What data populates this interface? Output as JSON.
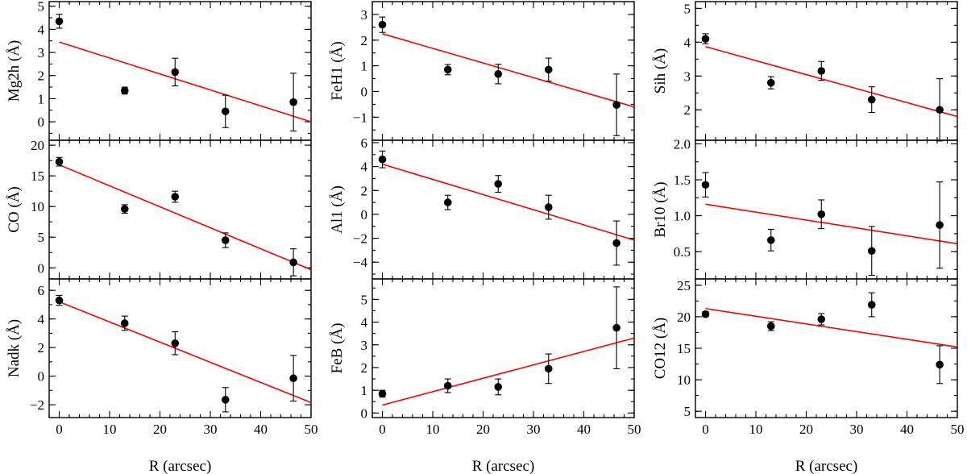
{
  "chart_data": [
    {
      "type": "scatter",
      "ylabel": "Mg2h (Å)",
      "xlabel": "",
      "xlim": [
        -2,
        50
      ],
      "ylim": [
        -0.8,
        5.2
      ],
      "yticks": [
        0,
        1,
        2,
        3,
        4,
        5
      ],
      "xticks": [
        0,
        10,
        20,
        30,
        40,
        50
      ],
      "show_x_ticklabels": false,
      "points": [
        {
          "x": 0,
          "y": 4.35,
          "err": 0.3
        },
        {
          "x": 13,
          "y": 1.35,
          "err": 0.15
        },
        {
          "x": 23,
          "y": 2.15,
          "err": 0.6
        },
        {
          "x": 33,
          "y": 0.45,
          "err": 0.7
        },
        {
          "x": 46.5,
          "y": 0.85,
          "err": 1.25
        }
      ],
      "fit": {
        "x": [
          0,
          50
        ],
        "y": [
          3.45,
          0.0
        ]
      }
    },
    {
      "type": "scatter",
      "ylabel": "FeH1 (Å)",
      "xlabel": "",
      "xlim": [
        -2,
        50
      ],
      "ylim": [
        -1.9,
        3.5
      ],
      "yticks": [
        -1,
        0,
        1,
        2,
        3
      ],
      "xticks": [
        0,
        10,
        20,
        30,
        40,
        50
      ],
      "show_x_ticklabels": false,
      "points": [
        {
          "x": 0,
          "y": 2.6,
          "err": 0.3
        },
        {
          "x": 13,
          "y": 0.85,
          "err": 0.2
        },
        {
          "x": 23,
          "y": 0.68,
          "err": 0.38
        },
        {
          "x": 33,
          "y": 0.85,
          "err": 0.45
        },
        {
          "x": 46.5,
          "y": -0.52,
          "err": 1.2
        }
      ],
      "fit": {
        "x": [
          0,
          50
        ],
        "y": [
          2.25,
          -0.6
        ]
      }
    },
    {
      "type": "scatter",
      "ylabel": "Sih (Å)",
      "xlabel": "",
      "xlim": [
        -2,
        50
      ],
      "ylim": [
        1.1,
        5.2
      ],
      "yticks": [
        2,
        3,
        4,
        5
      ],
      "xticks": [
        0,
        10,
        20,
        30,
        40,
        50
      ],
      "show_x_ticklabels": false,
      "points": [
        {
          "x": 0,
          "y": 4.1,
          "err": 0.15
        },
        {
          "x": 13,
          "y": 2.8,
          "err": 0.18
        },
        {
          "x": 23,
          "y": 3.15,
          "err": 0.28
        },
        {
          "x": 33,
          "y": 2.3,
          "err": 0.38
        },
        {
          "x": 46.5,
          "y": 2.0,
          "err": 0.92
        }
      ],
      "fit": {
        "x": [
          0,
          50
        ],
        "y": [
          3.87,
          1.8
        ]
      }
    },
    {
      "type": "scatter",
      "ylabel": "CO (Å)",
      "xlabel": "",
      "xlim": [
        -2,
        50
      ],
      "ylim": [
        -1.8,
        20.8
      ],
      "yticks": [
        0,
        5,
        10,
        15,
        20
      ],
      "xticks": [
        0,
        10,
        20,
        30,
        40,
        50
      ],
      "show_x_ticklabels": false,
      "points": [
        {
          "x": 0,
          "y": 17.3,
          "err": 0.7
        },
        {
          "x": 13,
          "y": 9.6,
          "err": 0.7
        },
        {
          "x": 23,
          "y": 11.6,
          "err": 0.9
        },
        {
          "x": 33,
          "y": 4.5,
          "err": 1.2
        },
        {
          "x": 46.5,
          "y": 0.9,
          "err": 2.2
        }
      ],
      "fit": {
        "x": [
          0,
          50
        ],
        "y": [
          16.8,
          -0.3
        ]
      }
    },
    {
      "type": "scatter",
      "ylabel": "Al1 (Å)",
      "xlabel": "",
      "xlim": [
        -2,
        50
      ],
      "ylim": [
        -5.4,
        6.2
      ],
      "yticks": [
        -4,
        -2,
        0,
        2,
        4,
        6
      ],
      "xticks": [
        0,
        10,
        20,
        30,
        40,
        50
      ],
      "show_x_ticklabels": false,
      "points": [
        {
          "x": 0,
          "y": 4.6,
          "err": 0.7
        },
        {
          "x": 13,
          "y": 1.0,
          "err": 0.6
        },
        {
          "x": 23,
          "y": 2.55,
          "err": 0.7
        },
        {
          "x": 33,
          "y": 0.6,
          "err": 1.0
        },
        {
          "x": 46.5,
          "y": -2.4,
          "err": 1.85
        }
      ],
      "fit": {
        "x": [
          0,
          50
        ],
        "y": [
          4.2,
          -2.15
        ]
      }
    },
    {
      "type": "scatter",
      "ylabel": "Br10 (Å)",
      "xlabel": "",
      "xlim": [
        -2,
        50
      ],
      "ylim": [
        0.12,
        2.05
      ],
      "yticks": [
        0.5,
        1.0,
        1.5,
        2.0
      ],
      "ytick_labels": [
        "0.5",
        "1.0",
        "1.5",
        "2.0"
      ],
      "xticks": [
        0,
        10,
        20,
        30,
        40,
        50
      ],
      "show_x_ticklabels": false,
      "points": [
        {
          "x": 0,
          "y": 1.43,
          "err": 0.17
        },
        {
          "x": 13,
          "y": 0.66,
          "err": 0.15
        },
        {
          "x": 23,
          "y": 1.02,
          "err": 0.2
        },
        {
          "x": 33,
          "y": 0.51,
          "err": 0.34
        },
        {
          "x": 46.5,
          "y": 0.87,
          "err": 0.6
        }
      ],
      "fit": {
        "x": [
          0,
          50
        ],
        "y": [
          1.16,
          0.61
        ]
      }
    },
    {
      "type": "scatter",
      "ylabel": "Nadk (Å)",
      "xlabel": "R (arcsec)",
      "xlim": [
        -2,
        50
      ],
      "ylim": [
        -2.9,
        6.8
      ],
      "yticks": [
        -2,
        0,
        2,
        4,
        6
      ],
      "xticks": [
        0,
        10,
        20,
        30,
        40,
        50
      ],
      "show_x_ticklabels": true,
      "points": [
        {
          "x": 0,
          "y": 5.3,
          "err": 0.35
        },
        {
          "x": 13,
          "y": 3.7,
          "err": 0.5
        },
        {
          "x": 23,
          "y": 2.3,
          "err": 0.8
        },
        {
          "x": 33,
          "y": -1.65,
          "err": 0.85
        },
        {
          "x": 46.5,
          "y": -0.15,
          "err": 1.6
        }
      ],
      "fit": {
        "x": [
          0,
          50
        ],
        "y": [
          5.2,
          -1.85
        ]
      }
    },
    {
      "type": "scatter",
      "ylabel": "FeB (Å)",
      "xlabel": "R (arcsec)",
      "xlim": [
        -2,
        50
      ],
      "ylim": [
        -0.2,
        5.9
      ],
      "yticks": [
        0,
        1,
        2,
        3,
        4,
        5
      ],
      "xticks": [
        0,
        10,
        20,
        30,
        40,
        50
      ],
      "show_x_ticklabels": true,
      "points": [
        {
          "x": 0,
          "y": 0.85,
          "err": 0.15
        },
        {
          "x": 13,
          "y": 1.2,
          "err": 0.3
        },
        {
          "x": 23,
          "y": 1.15,
          "err": 0.35
        },
        {
          "x": 33,
          "y": 1.95,
          "err": 0.65
        },
        {
          "x": 46.5,
          "y": 3.75,
          "err": 1.8
        }
      ],
      "fit": {
        "x": [
          0,
          50
        ],
        "y": [
          0.35,
          3.3
        ]
      }
    },
    {
      "type": "scatter",
      "ylabel": "CO12 (Å)",
      "xlabel": "R (arcsec)",
      "xlim": [
        -2,
        50
      ],
      "ylim": [
        4.0,
        26.0
      ],
      "yticks": [
        5,
        10,
        15,
        20,
        25
      ],
      "xticks": [
        0,
        10,
        20,
        30,
        40,
        50
      ],
      "show_x_ticklabels": true,
      "points": [
        {
          "x": 0,
          "y": 20.4,
          "err": 0.4
        },
        {
          "x": 13,
          "y": 18.5,
          "err": 0.7
        },
        {
          "x": 23,
          "y": 19.6,
          "err": 0.9
        },
        {
          "x": 33,
          "y": 21.9,
          "err": 1.9
        },
        {
          "x": 46.5,
          "y": 12.4,
          "err": 3.0
        }
      ],
      "fit": {
        "x": [
          0,
          50
        ],
        "y": [
          21.3,
          15.2
        ]
      }
    }
  ]
}
